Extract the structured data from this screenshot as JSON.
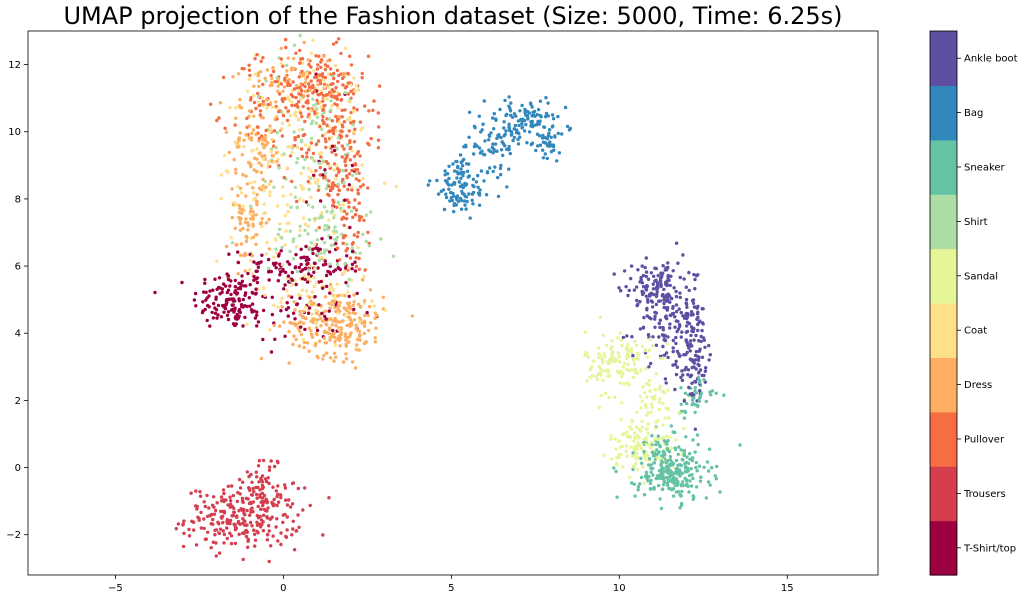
{
  "chart_data": {
    "type": "scatter",
    "title": "UMAP projection of the Fashion dataset (Size: 5000, Time: 6.25s)",
    "xlabel": "",
    "ylabel": "",
    "xlim": [
      -7.6,
      17.7
    ],
    "ylim": [
      -3.2,
      13.0
    ],
    "xticks": [
      -5,
      0,
      5,
      10,
      15
    ],
    "yticks": [
      -2,
      0,
      2,
      4,
      6,
      8,
      10,
      12
    ],
    "grid": false,
    "legend": "colorbar-right",
    "colorbar": {
      "labels": [
        "T-Shirt/top",
        "Trousers",
        "Pullover",
        "Dress",
        "Coat",
        "Sandal",
        "Shirt",
        "Sneaker",
        "Bag",
        "Ankle boot"
      ],
      "colors": [
        "#9e0142",
        "#d53e4f",
        "#f46d43",
        "#fdae61",
        "#fee08b",
        "#e6f598",
        "#abdda4",
        "#66c2a5",
        "#3288bd",
        "#5e4fa2"
      ]
    },
    "series": [
      {
        "label_index": 0,
        "clusters": [
          {
            "cx": -1.6,
            "cy": 5.0,
            "sx": 0.55,
            "sy": 0.45,
            "n": 130
          },
          {
            "cx": 0.6,
            "cy": 6.0,
            "sx": 0.9,
            "sy": 0.35,
            "n": 120
          },
          {
            "cx": 0.4,
            "cy": 4.6,
            "sx": 1.0,
            "sy": 0.5,
            "n": 60
          },
          {
            "cx": 1.5,
            "cy": 9.0,
            "sx": 0.6,
            "sy": 1.5,
            "n": 20
          }
        ]
      },
      {
        "label_index": 1,
        "clusters": [
          {
            "cx": -1.2,
            "cy": -1.5,
            "sx": 0.85,
            "sy": 0.45,
            "n": 260
          },
          {
            "cx": -0.6,
            "cy": -0.4,
            "sx": 0.3,
            "sy": 0.4,
            "n": 50
          }
        ]
      },
      {
        "label_index": 2,
        "clusters": [
          {
            "cx": 0.9,
            "cy": 11.3,
            "sx": 0.8,
            "sy": 0.6,
            "n": 150
          },
          {
            "cx": 1.5,
            "cy": 9.8,
            "sx": 0.6,
            "sy": 1.2,
            "n": 170
          },
          {
            "cx": -0.6,
            "cy": 10.6,
            "sx": 0.5,
            "sy": 0.9,
            "n": 50
          },
          {
            "cx": 2.0,
            "cy": 7.5,
            "sx": 0.4,
            "sy": 1.0,
            "n": 60
          }
        ]
      },
      {
        "label_index": 3,
        "clusters": [
          {
            "cx": 1.6,
            "cy": 4.3,
            "sx": 0.7,
            "sy": 0.5,
            "n": 230
          },
          {
            "cx": -1.1,
            "cy": 7.4,
            "sx": 0.3,
            "sy": 0.7,
            "n": 70
          },
          {
            "cx": -0.8,
            "cy": 9.5,
            "sx": 0.4,
            "sy": 0.8,
            "n": 80
          },
          {
            "cx": 0.2,
            "cy": 11.6,
            "sx": 0.7,
            "sy": 0.4,
            "n": 60
          }
        ]
      },
      {
        "label_index": 4,
        "clusters": [
          {
            "cx": 0.2,
            "cy": 8.5,
            "sx": 1.1,
            "sy": 1.6,
            "n": 170
          },
          {
            "cx": 1.0,
            "cy": 5.3,
            "sx": 0.8,
            "sy": 0.7,
            "n": 70
          },
          {
            "cx": 0.8,
            "cy": 11.0,
            "sx": 0.9,
            "sy": 0.6,
            "n": 60
          }
        ]
      },
      {
        "label_index": 5,
        "clusters": [
          {
            "cx": 10.0,
            "cy": 3.1,
            "sx": 0.5,
            "sy": 0.5,
            "n": 130
          },
          {
            "cx": 10.7,
            "cy": 0.7,
            "sx": 0.5,
            "sy": 0.4,
            "n": 110
          },
          {
            "cx": 11.0,
            "cy": 1.9,
            "sx": 0.4,
            "sy": 0.4,
            "n": 40
          }
        ]
      },
      {
        "label_index": 6,
        "clusters": [
          {
            "cx": 0.9,
            "cy": 9.3,
            "sx": 0.9,
            "sy": 1.5,
            "n": 100
          },
          {
            "cx": 1.2,
            "cy": 6.8,
            "sx": 0.8,
            "sy": 0.6,
            "n": 60
          }
        ]
      },
      {
        "label_index": 7,
        "clusters": [
          {
            "cx": 11.6,
            "cy": -0.2,
            "sx": 0.55,
            "sy": 0.4,
            "n": 220
          },
          {
            "cx": 12.2,
            "cy": 2.1,
            "sx": 0.3,
            "sy": 0.3,
            "n": 40
          },
          {
            "cx": 11.3,
            "cy": 0.6,
            "sx": 0.4,
            "sy": 0.3,
            "n": 40
          }
        ]
      },
      {
        "label_index": 8,
        "clusters": [
          {
            "cx": 7.2,
            "cy": 10.3,
            "sx": 0.6,
            "sy": 0.35,
            "n": 110
          },
          {
            "cx": 5.3,
            "cy": 8.4,
            "sx": 0.45,
            "sy": 0.45,
            "n": 110
          },
          {
            "cx": 6.3,
            "cy": 9.6,
            "sx": 0.4,
            "sy": 0.4,
            "n": 60
          },
          {
            "cx": 7.9,
            "cy": 9.6,
            "sx": 0.15,
            "sy": 0.3,
            "n": 30
          }
        ]
      },
      {
        "label_index": 9,
        "clusters": [
          {
            "cx": 11.5,
            "cy": 4.6,
            "sx": 0.55,
            "sy": 0.7,
            "n": 190
          },
          {
            "cx": 12.2,
            "cy": 3.2,
            "sx": 0.3,
            "sy": 0.6,
            "n": 100
          },
          {
            "cx": 10.9,
            "cy": 5.4,
            "sx": 0.4,
            "sy": 0.3,
            "n": 60
          }
        ]
      }
    ]
  }
}
